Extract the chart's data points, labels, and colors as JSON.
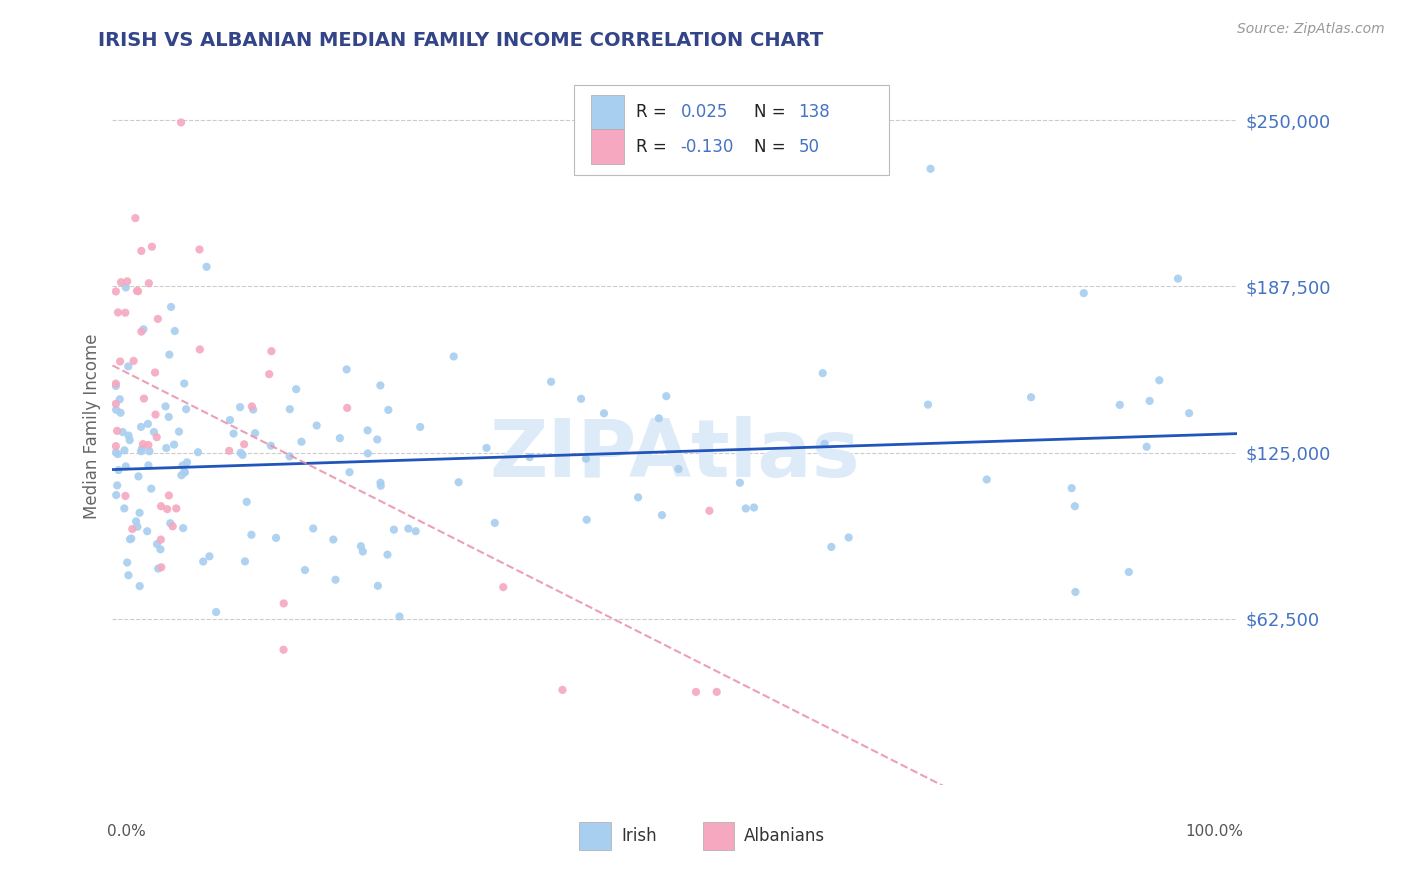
{
  "title": "IRISH VS ALBANIAN MEDIAN FAMILY INCOME CORRELATION CHART",
  "source": "Source: ZipAtlas.com",
  "ylabel": "Median Family Income",
  "xmin": 0.0,
  "xmax": 100.0,
  "ymin": 0,
  "ymax": 270000,
  "irish_R": 0.025,
  "irish_N": 138,
  "albanian_R": -0.13,
  "albanian_N": 50,
  "irish_scatter_color": "#a8cef0",
  "albanian_scatter_color": "#f5a8c0",
  "irish_line_color": "#2255bb",
  "albanian_line_color": "#e890a8",
  "title_color": "#334488",
  "axis_label_color": "#4472c4",
  "grid_color": "#cccccc",
  "background_color": "#ffffff",
  "watermark_color": "#ddeaf8",
  "ytick_vals": [
    62500,
    125000,
    187500,
    250000
  ],
  "ytick_labels": [
    "$62,500",
    "$125,000",
    "$187,500",
    "$250,000"
  ],
  "legend_label1": "R = ",
  "legend_val1": "0.025",
  "legend_n1": "N = ",
  "legend_nval1": "138",
  "legend_label2": "R = ",
  "legend_val2": "-0.130",
  "legend_n2": "N = ",
  "legend_nval2": "50",
  "bottom_legend_irish": "Irish",
  "bottom_legend_albanians": "Albanians"
}
